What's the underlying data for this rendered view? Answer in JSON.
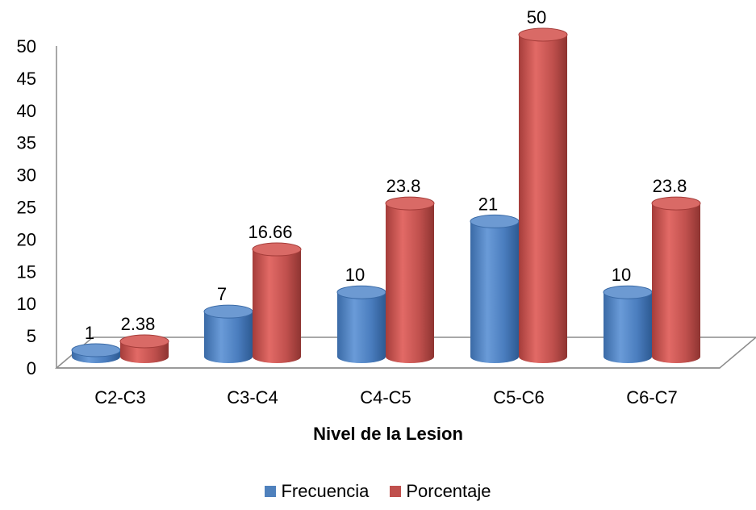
{
  "chart_data": {
    "type": "bar",
    "title": "",
    "xlabel": "Nivel de la Lesion",
    "ylabel": "",
    "ylim": [
      0,
      50
    ],
    "yticks": [
      "0",
      "5",
      "10",
      "15",
      "20",
      "25",
      "30",
      "35",
      "40",
      "45",
      "50"
    ],
    "categories": [
      "C2-C3",
      "C3-C4",
      "C4-C5",
      "C5-C6",
      "C6-C7"
    ],
    "series": [
      {
        "name": "Frecuencia",
        "color": "#4f81bd",
        "values": [
          1,
          7,
          10,
          21,
          10
        ],
        "labels": [
          "1",
          "7",
          "10",
          "21",
          "10"
        ]
      },
      {
        "name": "Porcentaje",
        "color": "#c0504d",
        "values": [
          2.38,
          16.66,
          23.8,
          50,
          23.8
        ],
        "labels": [
          "2.38",
          "16.66",
          "23.8",
          "50",
          "23.8"
        ]
      }
    ],
    "grid": false,
    "legend": "bottom",
    "style": "3d-cylinder"
  }
}
